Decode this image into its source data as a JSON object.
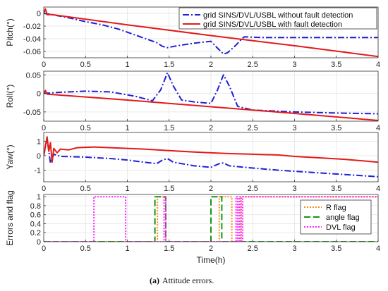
{
  "caption": {
    "label": "(a)",
    "text": "Attitude errors."
  },
  "colors": {
    "blue": "#1f1fd6",
    "red": "#e31a1a",
    "orange": "#ff8c1a",
    "green": "#119911",
    "magenta": "#ff22ff"
  },
  "chart_data": [
    {
      "type": "line",
      "ylabel": "Pitch(°)",
      "xlim": [
        0,
        4
      ],
      "ylim": [
        -0.07,
        0.01
      ],
      "yticks": [
        -0.06,
        -0.04,
        -0.02,
        0
      ],
      "ytick_labels": [
        "-0.06",
        "-0.04",
        "-0.02",
        "0"
      ],
      "xticks": [
        0,
        0.5,
        1,
        1.5,
        2,
        2.5,
        3,
        3.5,
        4
      ],
      "xtick_labels": [
        "0",
        "0.5",
        "1",
        "1.5",
        "2",
        "2.5",
        "3",
        "3.5",
        "4"
      ],
      "legend": {
        "placement": "top-right"
      },
      "series": [
        {
          "name": "grid SINS/DVL/USBL without fault detection",
          "color_key": "blue",
          "style": "dashdot",
          "x": [
            0,
            0.1,
            0.3,
            0.5,
            0.7,
            0.9,
            1.05,
            1.2,
            1.35,
            1.42,
            1.48,
            1.6,
            1.8,
            2.0,
            2.08,
            2.15,
            2.2,
            2.3,
            2.37,
            2.4,
            2.6,
            3.0,
            3.5,
            4.0
          ],
          "y": [
            0,
            -0.002,
            -0.007,
            -0.013,
            -0.018,
            -0.025,
            -0.032,
            -0.039,
            -0.046,
            -0.052,
            -0.054,
            -0.051,
            -0.047,
            -0.044,
            -0.055,
            -0.064,
            -0.062,
            -0.05,
            -0.04,
            -0.037,
            -0.038,
            -0.038,
            -0.038,
            -0.038
          ]
        },
        {
          "name": "grid SINS/DVL/USBL with fault detection",
          "color_key": "red",
          "style": "solid",
          "x": [
            0,
            0.02,
            0.04,
            0.1,
            1,
            2,
            3,
            4
          ],
          "y": [
            0,
            0.007,
            -0.002,
            -0.002,
            -0.018,
            -0.035,
            -0.051,
            -0.068
          ]
        }
      ]
    },
    {
      "type": "line",
      "ylabel": "Roll(°)",
      "xlim": [
        0,
        4
      ],
      "ylim": [
        -0.075,
        0.06
      ],
      "yticks": [
        -0.05,
        0,
        0.05
      ],
      "ytick_labels": [
        "-0.05",
        "0",
        "0.05"
      ],
      "xticks": [
        0,
        0.5,
        1,
        1.5,
        2,
        2.5,
        3,
        3.5,
        4
      ],
      "xtick_labels": [
        "0",
        "0.5",
        "1",
        "1.5",
        "2",
        "2.5",
        "3",
        "3.5",
        "4"
      ],
      "series": [
        {
          "name": "grid SINS/DVL/USBL without fault detection",
          "color_key": "blue",
          "style": "dashdot",
          "x": [
            0,
            0.2,
            0.5,
            0.8,
            1.1,
            1.3,
            1.4,
            1.48,
            1.55,
            1.65,
            1.8,
            2.0,
            2.08,
            2.15,
            2.22,
            2.32,
            2.5,
            3.0,
            3.5,
            4.0
          ],
          "y": [
            0,
            0.003,
            0.006,
            0.004,
            -0.008,
            -0.02,
            0.01,
            0.056,
            0.02,
            -0.018,
            -0.023,
            -0.027,
            0.01,
            0.05,
            0.02,
            -0.035,
            -0.045,
            -0.05,
            -0.053,
            -0.055
          ]
        },
        {
          "name": "grid SINS/DVL/USBL with fault detection",
          "color_key": "red",
          "style": "solid",
          "x": [
            0,
            0.02,
            0.04,
            1,
            2,
            3,
            4
          ],
          "y": [
            0,
            0.008,
            -0.002,
            -0.018,
            -0.036,
            -0.054,
            -0.073
          ]
        }
      ]
    },
    {
      "type": "line",
      "ylabel": "Yaw(°)",
      "xlim": [
        0,
        4
      ],
      "ylim": [
        -1.8,
        1.6
      ],
      "yticks": [
        -1,
        0,
        1
      ],
      "ytick_labels": [
        "-1",
        "0",
        "1"
      ],
      "xticks": [
        0,
        0.5,
        1,
        1.5,
        2,
        2.5,
        3,
        3.5,
        4
      ],
      "xtick_labels": [
        "0",
        "0.5",
        "1",
        "1.5",
        "2",
        "2.5",
        "3",
        "3.5",
        "4"
      ],
      "series": [
        {
          "name": "grid SINS/DVL/USBL without fault detection",
          "color_key": "blue",
          "style": "dashdot",
          "x": [
            0,
            0.04,
            0.08,
            0.12,
            0.2,
            0.5,
            0.8,
            1.0,
            1.2,
            1.35,
            1.42,
            1.48,
            1.55,
            1.8,
            2.0,
            2.1,
            2.15,
            2.22,
            2.4,
            2.8,
            3.2,
            3.6,
            4.0
          ],
          "y": [
            0,
            1.2,
            -0.5,
            0.1,
            -0.05,
            -0.1,
            -0.2,
            -0.3,
            -0.45,
            -0.55,
            -0.3,
            -0.2,
            -0.45,
            -0.7,
            -0.8,
            -0.55,
            -0.5,
            -0.7,
            -0.8,
            -1.0,
            -1.15,
            -1.3,
            -1.45
          ]
        },
        {
          "name": "grid SINS/DVL/USBL with fault detection",
          "color_key": "red",
          "style": "solid",
          "x": [
            0,
            0.04,
            0.06,
            0.08,
            0.1,
            0.12,
            0.16,
            0.2,
            0.3,
            0.4,
            0.6,
            0.8,
            1.0,
            1.2,
            1.5,
            1.8,
            2.0,
            2.2,
            2.5,
            2.8,
            3.0,
            3.3,
            3.6,
            3.9,
            4.0
          ],
          "y": [
            0,
            1.3,
            0.3,
            0.9,
            -0.45,
            0.5,
            0.2,
            0.45,
            0.4,
            0.55,
            0.6,
            0.55,
            0.5,
            0.45,
            0.35,
            0.25,
            0.2,
            0.15,
            0.1,
            0.05,
            -0.05,
            -0.15,
            -0.25,
            -0.4,
            -0.45
          ]
        }
      ]
    },
    {
      "type": "line",
      "ylabel": "Errors and flag",
      "xlim": [
        0,
        4
      ],
      "ylim": [
        0,
        1.05
      ],
      "yticks": [
        0,
        0.2,
        0.4,
        0.6,
        0.8,
        1
      ],
      "ytick_labels": [
        "0",
        "0.2",
        "0.4",
        "0.6",
        "0.8",
        "1"
      ],
      "xticks": [
        0,
        0.5,
        1,
        1.5,
        2,
        2.5,
        3,
        3.5,
        4
      ],
      "xtick_labels": [
        "0",
        "0.5",
        "1",
        "1.5",
        "2",
        "2.5",
        "3",
        "3.5",
        "4"
      ],
      "xlabel": "Time(h)",
      "legend": {
        "placement": "right"
      },
      "series": [
        {
          "name": "R flag",
          "color_key": "orange",
          "style": "dotted",
          "x": [
            0,
            1.36,
            1.36,
            1.46,
            1.46,
            2.1,
            2.1,
            2.25,
            2.25,
            2.36,
            2.36,
            4
          ],
          "y": [
            0,
            0,
            1,
            1,
            0,
            0,
            1,
            1,
            0,
            0,
            1,
            1
          ]
        },
        {
          "name": "angle flag",
          "color_key": "green",
          "style": "dashed",
          "x": [
            0,
            1.33,
            1.33,
            1.46,
            1.46,
            2.0,
            2.0,
            2.13,
            2.13,
            4
          ],
          "y": [
            0,
            0,
            1,
            1,
            0,
            0,
            1,
            1,
            0,
            0
          ]
        },
        {
          "name": "DVL flag",
          "color_key": "magenta",
          "style": "dotted",
          "x": [
            0,
            0.6,
            0.6,
            0.98,
            0.98,
            1.44,
            1.44,
            1.46,
            1.46,
            2.3,
            2.3,
            2.32,
            2.32,
            2.34,
            2.34,
            2.36,
            2.36,
            2.38,
            2.38,
            4
          ],
          "y": [
            0,
            0,
            1,
            1,
            0,
            0,
            1,
            1,
            0,
            0,
            1,
            1,
            0,
            0,
            1,
            1,
            0,
            0,
            1,
            1
          ]
        }
      ]
    }
  ]
}
